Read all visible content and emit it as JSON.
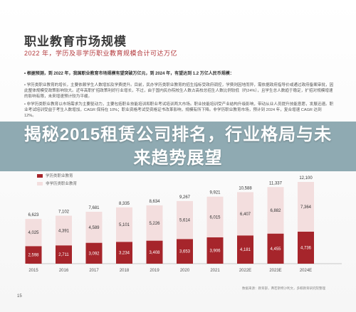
{
  "doc": {
    "title": "职业教育市场规模",
    "subtitle": "2022 年，学历及非学历职业教育规模合计可达万亿",
    "intro": "• 根据预测，到 2022 年，我国职业教育市场规模有望突破万亿元，到 2024 年，有望达到 1.2 万亿人民币规模：",
    "bullets": [
      "• 学历类职业教育的增长，主要依赖学生人数增加及学费提升。目前，民办学历类职业教育的招生指标受政府调控，学费则因地而异，需依据政府指导价或通过政府备案审批，因此整体规模受政策影响较大。近年高职扩招政策利好行业增长，不过，由于国内民办院校生人数占高校总招生人数比例较低（约24%），且学生总人数趋于稳定，扩招对规模增速的影响有限，未来增速预计较为平缓。",
      "• 非学历类职业教育以市场需求为主要驱动力，主要包括职业技能培训和职业考试培训两大市场。职业技能培训受产业结构升级影响，带动从业人员提升技能意愿，发展迅速。职业考试培训受益于考生人数增加，CAGR 保持在 10%；职业资格考试受资格证书改革影响，规模有所下降。非学历职业教育市场，预计到 2024 年，复合增速 CAGR 达到 12%。"
    ],
    "banner": "揭秘2015租赁公司排名，行业格局与未来趋势展望",
    "source": "数据来源：教育部，弗若斯特沙利文，多鲸教育研究院整理",
    "page_number": "15"
  },
  "chart_data": {
    "type": "bar",
    "stacked": true,
    "categories": [
      "2015",
      "2016",
      "2017",
      "2018",
      "2019",
      "2020",
      "2021",
      "2022E",
      "2023E",
      "2024E"
    ],
    "series": [
      {
        "name": "学历类职业教育",
        "color": "#a6252b",
        "values": [
          2598,
          2711,
          3092,
          3234,
          3408,
          3653,
          3906,
          4181,
          4455,
          4736
        ]
      },
      {
        "name": "非学历类职业教育",
        "color": "#f3dede",
        "values": [
          4025,
          4391,
          4589,
          5101,
          5226,
          5614,
          6015,
          6407,
          6882,
          7364
        ]
      }
    ],
    "totals": [
      "6,623",
      "7,102",
      "7,681",
      "8,335",
      "8,634",
      "9,267",
      "9,921",
      "10,588",
      "11,337",
      "12,100"
    ],
    "series_labels": [
      [
        "2,598",
        "2,711",
        "3,092",
        "3,234",
        "3,408",
        "3,653",
        "3,906",
        "4,181",
        "4,455",
        "4,736"
      ],
      [
        "4,025",
        "4,391",
        "4,589",
        "5,101",
        "5,226",
        "5,614",
        "6,015",
        "6,407",
        "6,882",
        "7,364"
      ]
    ],
    "ylim": [
      0,
      13000
    ],
    "grid": false,
    "legend": "top-left"
  }
}
